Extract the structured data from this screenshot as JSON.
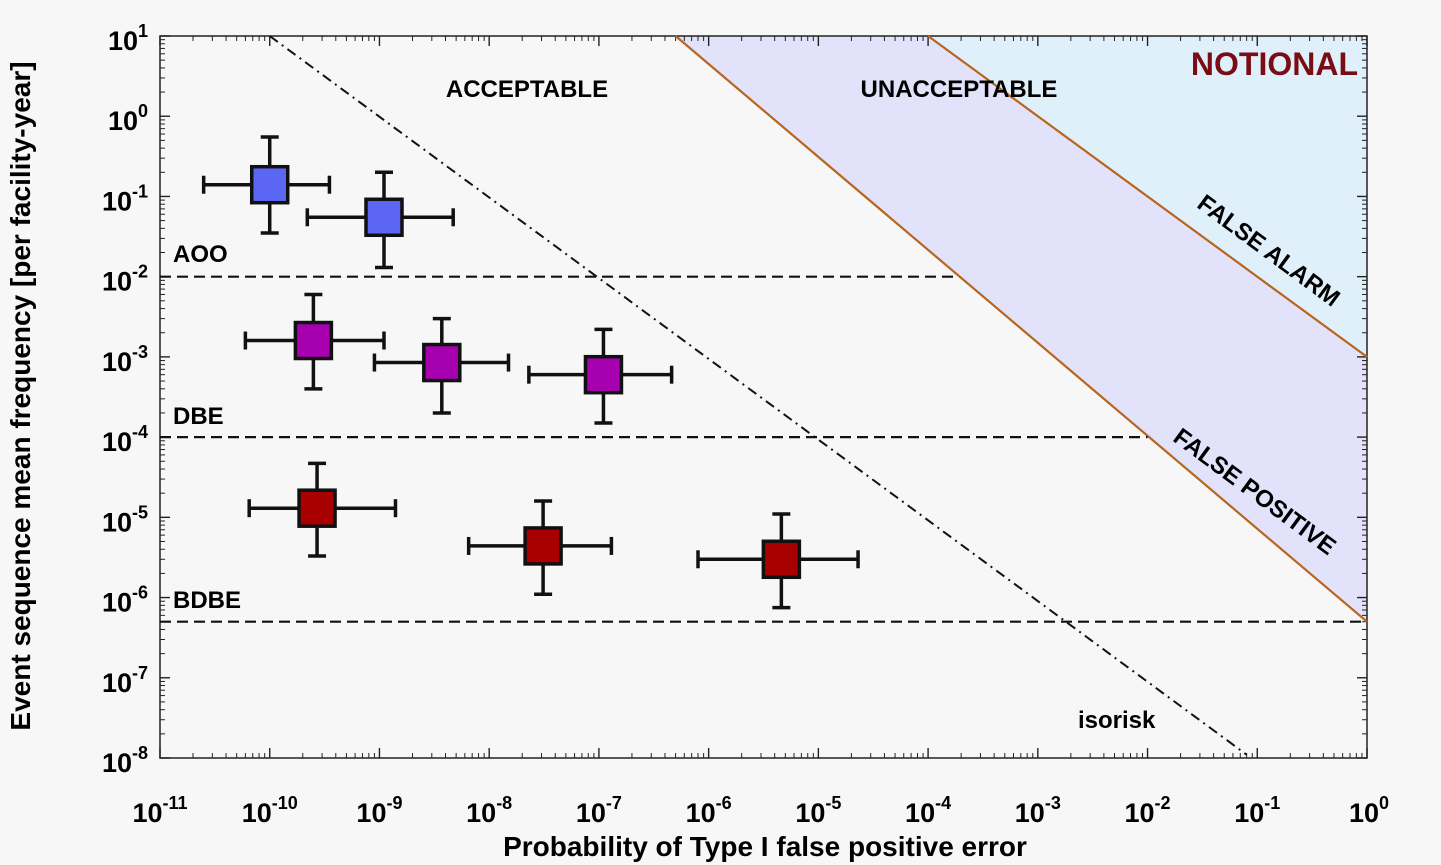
{
  "chart_data": {
    "type": "scatter",
    "x_scale": "log",
    "y_scale": "log",
    "xlim": [
      1e-11,
      1
    ],
    "ylim": [
      1e-08,
      10
    ],
    "x_ticks": [
      {
        "base": "10",
        "exp": "-11",
        "value": 1e-11
      },
      {
        "base": "10",
        "exp": "-10",
        "value": 1e-10
      },
      {
        "base": "10",
        "exp": "-9",
        "value": 1e-09
      },
      {
        "base": "10",
        "exp": "-8",
        "value": 1e-08
      },
      {
        "base": "10",
        "exp": "-7",
        "value": 1e-07
      },
      {
        "base": "10",
        "exp": "-6",
        "value": 1e-06
      },
      {
        "base": "10",
        "exp": "-5",
        "value": 1e-05
      },
      {
        "base": "10",
        "exp": "-4",
        "value": 0.0001
      },
      {
        "base": "10",
        "exp": "-3",
        "value": 0.001
      },
      {
        "base": "10",
        "exp": "-2",
        "value": 0.01
      },
      {
        "base": "10",
        "exp": "-1",
        "value": 0.1
      },
      {
        "base": "10",
        "exp": "0",
        "value": 1
      }
    ],
    "y_ticks": [
      {
        "base": "10",
        "exp": "1",
        "value": 10
      },
      {
        "base": "10",
        "exp": "0",
        "value": 1
      },
      {
        "base": "10",
        "exp": "-1",
        "value": 0.1
      },
      {
        "base": "10",
        "exp": "-2",
        "value": 0.01
      },
      {
        "base": "10",
        "exp": "-3",
        "value": 0.001
      },
      {
        "base": "10",
        "exp": "-4",
        "value": 0.0001
      },
      {
        "base": "10",
        "exp": "-5",
        "value": 1e-05
      },
      {
        "base": "10",
        "exp": "-6",
        "value": 1e-06
      },
      {
        "base": "10",
        "exp": "-7",
        "value": 1e-07
      },
      {
        "base": "10",
        "exp": "-8",
        "value": 1e-08
      }
    ],
    "xlabel": "Probability of Type I false positive error",
    "ylabel": "Event sequence mean frequency [per facility-year]",
    "annotation": "NOTIONAL",
    "regions": {
      "acceptable_label": "ACCEPTABLE",
      "unacceptable_label": "UNACCEPTABLE",
      "false_alarm_label": "FALSE ALARM",
      "false_positive_label": "FALSE POSITIVE",
      "false_positive_color": "#e2e2fa",
      "false_alarm_color": "#e0f0fa",
      "boundary_color": "#b8651e"
    },
    "boundaries": [
      {
        "name": "false-positive-boundary",
        "points": [
          [
            5e-07,
            10
          ],
          [
            1,
            5e-07
          ]
        ]
      },
      {
        "name": "false-alarm-boundary",
        "points": [
          [
            0.0001,
            10
          ],
          [
            1,
            0.001
          ]
        ]
      }
    ],
    "thresholds": [
      {
        "label": "AOO",
        "y": 0.01,
        "x_end": 0.00017
      },
      {
        "label": "DBE",
        "y": 0.0001,
        "x_end": 0.01
      },
      {
        "label": "BDBE",
        "y": 5e-07,
        "x_end": 1
      }
    ],
    "isorisk": {
      "label": "isorisk",
      "points": [
        [
          1e-10,
          10
        ],
        [
          0.08,
          1.1e-08
        ]
      ]
    },
    "series": [
      {
        "color": "#5b66f5",
        "points": [
          {
            "x": 1e-10,
            "y": 0.14,
            "xerr": [
              2.5e-11,
              3.5e-10
            ],
            "yerr": [
              0.035,
              0.55
            ]
          },
          {
            "x": 1.1e-09,
            "y": 0.055,
            "xerr": [
              2.2e-10,
              4.7e-09
            ],
            "yerr": [
              0.013,
              0.2
            ]
          }
        ]
      },
      {
        "color": "#a600b0",
        "points": [
          {
            "x": 2.5e-10,
            "y": 0.0016,
            "xerr": [
              6e-11,
              1.1e-09
            ],
            "yerr": [
              0.0004,
              0.006
            ]
          },
          {
            "x": 3.7e-09,
            "y": 0.00085,
            "xerr": [
              9e-10,
              1.5e-08
            ],
            "yerr": [
              0.0002,
              0.003
            ]
          },
          {
            "x": 1.1e-07,
            "y": 0.0006,
            "xerr": [
              2.3e-08,
              4.6e-07
            ],
            "yerr": [
              0.00015,
              0.0022
            ]
          }
        ]
      },
      {
        "color": "#a80000",
        "points": [
          {
            "x": 2.7e-10,
            "y": 1.3e-05,
            "xerr": [
              6.5e-11,
              1.4e-09
            ],
            "yerr": [
              3.3e-06,
              4.7e-05
            ]
          },
          {
            "x": 3.1e-08,
            "y": 4.4e-06,
            "xerr": [
              6.5e-09,
              1.3e-07
            ],
            "yerr": [
              1.1e-06,
              1.6e-05
            ]
          },
          {
            "x": 4.6e-06,
            "y": 3e-06,
            "xerr": [
              8e-07,
              2.3e-05
            ],
            "yerr": [
              7.5e-07,
              1.1e-05
            ]
          }
        ]
      }
    ]
  }
}
